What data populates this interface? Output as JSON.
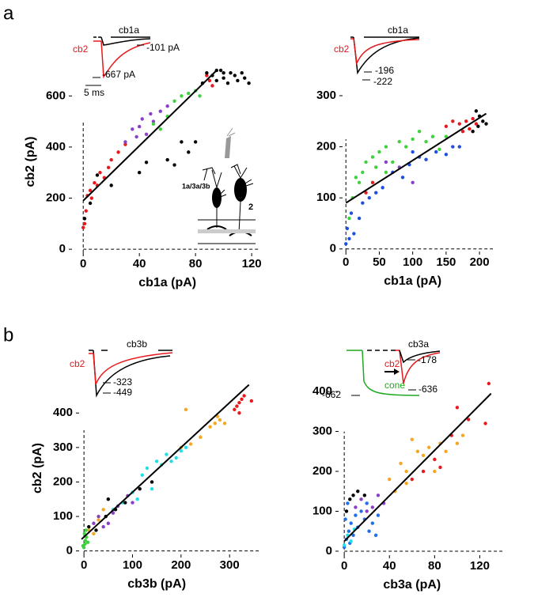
{
  "panel_labels": [
    "a",
    "b"
  ],
  "chart_data": [
    {
      "type": "scatter",
      "x_label": "cb1a (pA)",
      "y_label": "cb2 (pA)",
      "xlim": [
        -8,
        125
      ],
      "ylim": [
        -15,
        700
      ],
      "xticks": [
        0,
        40,
        80,
        120
      ],
      "yticks": [
        0,
        200,
        400,
        600
      ],
      "annotations": [
        "cb1a",
        "cb2",
        "-101 pA",
        "-667 pA",
        "5 ms",
        "1a/3a/3b",
        "2"
      ],
      "fit": {
        "x": [
          0,
          95
        ],
        "y": [
          190,
          700
        ],
        "color": "#000000"
      },
      "series": [
        {
          "color": "#e8191c",
          "x": [
            0,
            1,
            2,
            3,
            5,
            6,
            8,
            10,
            12,
            15,
            18,
            20,
            25,
            30,
            85,
            88,
            90,
            92
          ],
          "y": [
            85,
            100,
            150,
            210,
            230,
            200,
            260,
            250,
            300,
            280,
            320,
            350,
            380,
            410,
            650,
            680,
            660,
            640
          ]
        },
        {
          "color": "#8a3fc9",
          "x": [
            30,
            35,
            40,
            42,
            45,
            48,
            50,
            55,
            60,
            38
          ],
          "y": [
            420,
            470,
            480,
            510,
            450,
            530,
            500,
            540,
            560,
            440
          ]
        },
        {
          "color": "#3ed13e",
          "x": [
            50,
            55,
            60,
            65,
            70,
            75,
            80,
            83
          ],
          "y": [
            490,
            470,
            520,
            580,
            600,
            610,
            620,
            600
          ]
        },
        {
          "color": "#000000",
          "x": [
            1,
            5,
            10,
            20,
            40,
            45,
            60,
            65,
            70,
            75,
            80,
            85,
            88,
            92,
            95,
            98,
            100,
            103,
            105,
            108,
            110,
            113,
            115,
            118,
            95,
            100
          ],
          "y": [
            120,
            180,
            290,
            250,
            300,
            340,
            350,
            330,
            420,
            380,
            420,
            650,
            690,
            680,
            660,
            700,
            670,
            650,
            690,
            680,
            660,
            690,
            670,
            650,
            700,
            690
          ]
        }
      ]
    },
    {
      "type": "scatter",
      "x_label": "cb1a (pA)",
      "xlim": [
        -5,
        220
      ],
      "ylim": [
        -5,
        300
      ],
      "xticks": [
        0,
        50,
        100,
        150,
        200
      ],
      "yticks": [
        0,
        100,
        200,
        300
      ],
      "annotations": [
        "cb1a",
        "cb2",
        "-196",
        "-222"
      ],
      "fit": {
        "x": [
          0,
          210
        ],
        "y": [
          90,
          265
        ],
        "color": "#000000"
      },
      "series": [
        {
          "color": "#3ed13e",
          "x": [
            5,
            10,
            15,
            20,
            25,
            30,
            40,
            50,
            60,
            70,
            80,
            90,
            100,
            110,
            120,
            130,
            140,
            150,
            60,
            45
          ],
          "y": [
            60,
            100,
            140,
            130,
            150,
            170,
            180,
            190,
            200,
            170,
            210,
            200,
            215,
            230,
            210,
            220,
            195,
            220,
            150,
            160
          ]
        },
        {
          "color": "#1f4fe0",
          "x": [
            0,
            2,
            5,
            8,
            12,
            20,
            25,
            35,
            45,
            55,
            70,
            85,
            95,
            110,
            120,
            135,
            150,
            160,
            170,
            100
          ],
          "y": [
            10,
            40,
            20,
            70,
            30,
            60,
            90,
            100,
            110,
            120,
            150,
            140,
            165,
            180,
            175,
            190,
            185,
            200,
            200,
            190
          ]
        },
        {
          "color": "#e8191c",
          "x": [
            150,
            160,
            170,
            180,
            185,
            190,
            175,
            195,
            40,
            30
          ],
          "y": [
            240,
            250,
            245,
            250,
            235,
            255,
            230,
            245,
            130,
            110
          ]
        },
        {
          "color": "#8a3fc9",
          "x": [
            60,
            80,
            100
          ],
          "y": [
            170,
            160,
            130
          ]
        },
        {
          "color": "#000000",
          "x": [
            195,
            200,
            205,
            210,
            190,
            198
          ],
          "y": [
            270,
            260,
            250,
            245,
            230,
            240
          ]
        }
      ]
    },
    {
      "type": "scatter",
      "x_label": "cb3b (pA)",
      "y_label": "cb2 (pA)",
      "xlim": [
        -10,
        360
      ],
      "ylim": [
        -10,
        490
      ],
      "xticks": [
        0,
        100,
        200,
        300
      ],
      "yticks": [
        0,
        100,
        200,
        300,
        400
      ],
      "annotations": [
        "cb3b",
        "cb2",
        "-323",
        "-449"
      ],
      "fit": {
        "x": [
          -5,
          340
        ],
        "y": [
          34,
          482
        ],
        "color": "#000000"
      },
      "series": [
        {
          "color": "#f5a623",
          "x": [
            10,
            20,
            30,
            40,
            200,
            220,
            260,
            270,
            280,
            290,
            275,
            210,
            240
          ],
          "y": [
            60,
            50,
            90,
            120,
            300,
            310,
            360,
            370,
            380,
            370,
            390,
            410,
            330
          ]
        },
        {
          "color": "#1fe0e8",
          "x": [
            60,
            80,
            100,
            120,
            130,
            150,
            160,
            170,
            190,
            200,
            210,
            140,
            110,
            180
          ],
          "y": [
            120,
            140,
            170,
            220,
            240,
            260,
            250,
            280,
            270,
            290,
            300,
            180,
            150,
            260
          ]
        },
        {
          "color": "#8a3fc9",
          "x": [
            20,
            30,
            50,
            60,
            70,
            90,
            100,
            40
          ],
          "y": [
            80,
            100,
            80,
            110,
            130,
            160,
            140,
            70
          ]
        },
        {
          "color": "#000000",
          "x": [
            10,
            25,
            45,
            65,
            85,
            115,
            140,
            50
          ],
          "y": [
            70,
            60,
            100,
            120,
            140,
            180,
            200,
            150
          ]
        },
        {
          "color": "#3ed13e",
          "x": [
            0,
            2,
            3,
            5,
            1,
            8,
            -2,
            4
          ],
          "y": [
            10,
            20,
            30,
            40,
            50,
            25,
            15,
            60
          ]
        },
        {
          "color": "#e8191c",
          "x": [
            310,
            315,
            320,
            325,
            330,
            320,
            345
          ],
          "y": [
            410,
            420,
            400,
            440,
            450,
            430,
            435
          ]
        }
      ]
    },
    {
      "type": "scatter",
      "x_label": "cb3a (pA)",
      "xlim": [
        -5,
        140
      ],
      "ylim": [
        -10,
        420
      ],
      "xticks": [
        0,
        40,
        80,
        120
      ],
      "yticks": [
        0,
        100,
        200,
        300,
        400
      ],
      "annotations": [
        "cb3a",
        "cb2",
        "-178",
        "-636",
        "-662",
        "cone"
      ],
      "fit": {
        "x": [
          0,
          130
        ],
        "y": [
          25,
          395
        ],
        "color": "#000000"
      },
      "series": [
        {
          "color": "#f5a623",
          "x": [
            40,
            45,
            50,
            55,
            60,
            65,
            70,
            75,
            85,
            90,
            100,
            105,
            80,
            55
          ],
          "y": [
            180,
            150,
            220,
            200,
            280,
            250,
            240,
            260,
            270,
            250,
            270,
            290,
            200,
            170
          ]
        },
        {
          "color": "#e8191c",
          "x": [
            128,
            125,
            110,
            100,
            95,
            80,
            70,
            60,
            85
          ],
          "y": [
            420,
            320,
            330,
            360,
            290,
            230,
            200,
            180,
            210
          ]
        },
        {
          "color": "#8a3fc9",
          "x": [
            10,
            15,
            20,
            25,
            30,
            35
          ],
          "y": [
            110,
            130,
            100,
            110,
            140,
            120
          ]
        },
        {
          "color": "#000000",
          "x": [
            2,
            5,
            8,
            12,
            18
          ],
          "y": [
            100,
            130,
            140,
            150,
            140
          ]
        },
        {
          "color": "#1f6fe8",
          "x": [
            0,
            2,
            4,
            5,
            6,
            8,
            10,
            12,
            15,
            18,
            20,
            22,
            25,
            28,
            30,
            3,
            1
          ],
          "y": [
            10,
            30,
            50,
            20,
            70,
            40,
            90,
            60,
            100,
            80,
            120,
            50,
            70,
            40,
            90,
            120,
            80
          ]
        },
        {
          "color": "#1fe0e8",
          "x": [
            0,
            3,
            6,
            9
          ],
          "y": [
            15,
            40,
            25,
            55
          ]
        }
      ]
    }
  ]
}
